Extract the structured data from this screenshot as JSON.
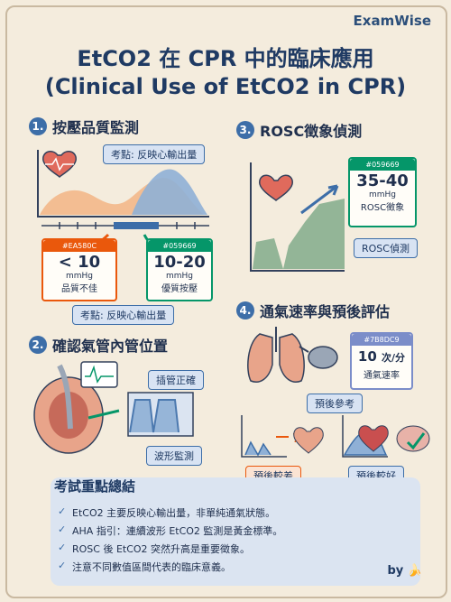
{
  "brand": "ExamWise",
  "title_line1": "EtCO2 在 CPR 中的臨床應用",
  "title_line2": "(Clinical Use of EtCO2 in CPR)",
  "sections": {
    "s1": {
      "num": "1.",
      "title": "按壓品質監測",
      "tag_top": "考點: 反映心輸出量",
      "tag_bottom": "考點: 反映心輸出量",
      "low_card": {
        "code": "#EA580C",
        "value": "< 10",
        "unit": "mmHg",
        "desc": "品質不佳"
      },
      "high_card": {
        "code": "#059669",
        "value": "10-20",
        "unit": "mmHg",
        "desc": "優質按壓"
      }
    },
    "s2": {
      "num": "2.",
      "title": "確認氣管內管位置",
      "tag_correct": "插管正確",
      "tag_wave": "波形監測"
    },
    "s3": {
      "num": "3.",
      "title": "ROSC徵象偵測",
      "card": {
        "code": "#059669",
        "value": "35-40",
        "unit": "mmHg",
        "desc": "ROSC徵象"
      },
      "tag": "ROSC偵測"
    },
    "s4": {
      "num": "4.",
      "title": "通氣速率與預後評估",
      "rate_card": {
        "code": "#7B8DC9",
        "value": "10",
        "unit": "次/分",
        "desc": "通氣速率"
      },
      "prognosis_label": "預後參考",
      "bad": "預後較差",
      "good": "預後較好"
    }
  },
  "summary": {
    "title": "考試重點總結",
    "items": [
      "EtCO2 主要反映心輸出量，非單純通氣狀態。",
      "AHA 指引：連續波形 EtCO2 監測是黃金標準。",
      "ROSC 後 EtCO2 突然升高是重要徵象。",
      "注意不同數值區間代表的臨床意義。"
    ],
    "by": "by"
  },
  "colors": {
    "orange": "#EA580C",
    "green": "#059669",
    "blue": "#3D6EA8",
    "purple": "#7B8DC9"
  }
}
